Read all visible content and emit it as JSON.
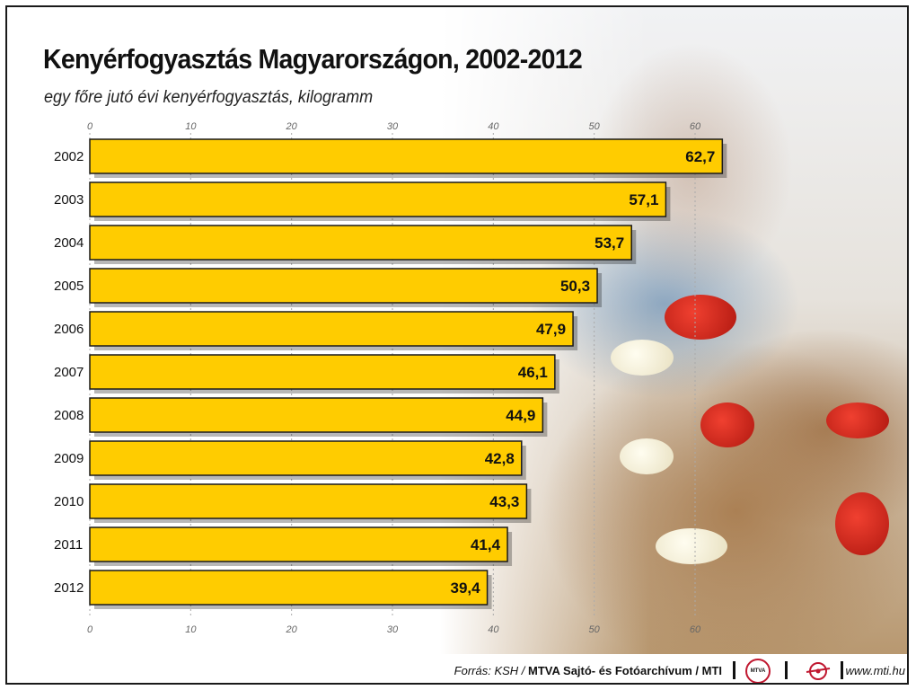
{
  "title": "Kenyérfogyasztás Magyarországon, 2002-2012",
  "subtitle": "egy főre jutó évi kenyérfogyasztás, kilogramm",
  "chart_data": {
    "type": "bar",
    "orientation": "horizontal",
    "categories": [
      "2002",
      "2003",
      "2004",
      "2005",
      "2006",
      "2007",
      "2008",
      "2009",
      "2010",
      "2011",
      "2012"
    ],
    "values": [
      62.7,
      57.1,
      53.7,
      50.3,
      47.9,
      46.1,
      44.9,
      42.8,
      43.3,
      41.4,
      39.4
    ],
    "value_labels": [
      "62,7",
      "57,1",
      "53,7",
      "50,3",
      "47,9",
      "46,1",
      "44,9",
      "42,8",
      "43,3",
      "41,4",
      "39,4"
    ],
    "xticks": [
      "0",
      "10",
      "20",
      "30",
      "40",
      "50",
      "60"
    ],
    "xlim": [
      0,
      60
    ],
    "axis_position": "top-and-bottom",
    "grid": true,
    "bar_color": "#ffcc00",
    "bar_outline_color": "#1a1a1a"
  },
  "footer": {
    "source_prefix": "Forrás: KSH / ",
    "source_org": "MTVA Sajtó- és Fotóarchívum / MTI",
    "mtva_logo_text": "MTVA",
    "website": "www.mti.hu"
  }
}
